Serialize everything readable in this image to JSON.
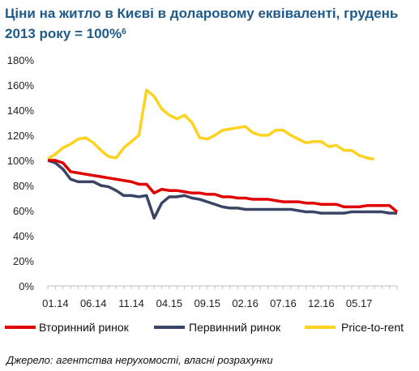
{
  "title": {
    "text": "Ціни на житло в Києві в доларовому еквіваленті, грудень 2013 року = 100%",
    "footnote": "6"
  },
  "source": "Джерело: агентства нерухомості, власні розрахунки",
  "chart_data": {
    "type": "line",
    "title": "Ціни на житло в Києві в доларовому еквіваленті, грудень 2013 року = 100%",
    "xlabel": "",
    "ylabel": "",
    "ylim": [
      0,
      180
    ],
    "yticks": [
      "0%",
      "20%",
      "40%",
      "60%",
      "80%",
      "100%",
      "120%",
      "140%",
      "160%",
      "180%"
    ],
    "x": [
      "12.13",
      "01.14",
      "02.14",
      "03.14",
      "04.14",
      "05.14",
      "06.14",
      "07.14",
      "08.14",
      "09.14",
      "10.14",
      "11.14",
      "12.14",
      "01.15",
      "02.15",
      "03.15",
      "04.15",
      "05.15",
      "06.15",
      "07.15",
      "08.15",
      "09.15",
      "10.15",
      "11.15",
      "12.15",
      "01.16",
      "02.16",
      "03.16",
      "04.16",
      "05.16",
      "06.16",
      "07.16",
      "08.16",
      "09.16",
      "10.16",
      "11.16",
      "12.16",
      "01.17",
      "02.17",
      "03.17",
      "04.17",
      "05.17",
      "06.17",
      "07.17",
      "08.17",
      "09.17",
      "10.17"
    ],
    "xtick_labels": [
      "01.14",
      "06.14",
      "11.14",
      "04.15",
      "09.15",
      "02.16",
      "07.16",
      "12.16",
      "05.17"
    ],
    "legend_position": "bottom",
    "grid": false,
    "series": [
      {
        "name": "Вторинний ринок",
        "color": "#e00000",
        "values": [
          100,
          100,
          98,
          91,
          90,
          89,
          88,
          87,
          86,
          85,
          84,
          83,
          81,
          81,
          74,
          77,
          76,
          76,
          75,
          74,
          74,
          73,
          73,
          71,
          71,
          70,
          70,
          69,
          69,
          69,
          68,
          67,
          67,
          67,
          66,
          66,
          65,
          65,
          65,
          63,
          63,
          63,
          64,
          64,
          64,
          64,
          59
        ]
      },
      {
        "name": "Первинний ринок",
        "color": "#3a4566",
        "values": [
          100,
          98,
          93,
          85,
          83,
          83,
          83,
          80,
          79,
          76,
          72,
          72,
          71,
          72,
          54,
          66,
          71,
          71,
          72,
          70,
          69,
          67,
          65,
          63,
          62,
          62,
          61,
          61,
          61,
          61,
          61,
          61,
          61,
          60,
          59,
          59,
          58,
          58,
          58,
          58,
          59,
          59,
          59,
          59,
          59,
          58,
          58
        ]
      },
      {
        "name": "Price-to-rent",
        "color": "#ffd21f",
        "values": [
          101,
          105,
          110,
          113,
          117,
          118,
          114,
          108,
          103,
          102,
          110,
          115,
          120,
          156,
          151,
          141,
          136,
          133,
          136,
          130,
          118,
          117,
          120,
          124,
          125,
          126,
          127,
          122,
          120,
          120,
          124,
          124,
          120,
          117,
          114,
          115,
          115,
          111,
          112,
          108,
          108,
          104,
          102,
          101,
          null,
          null,
          null
        ]
      }
    ]
  }
}
